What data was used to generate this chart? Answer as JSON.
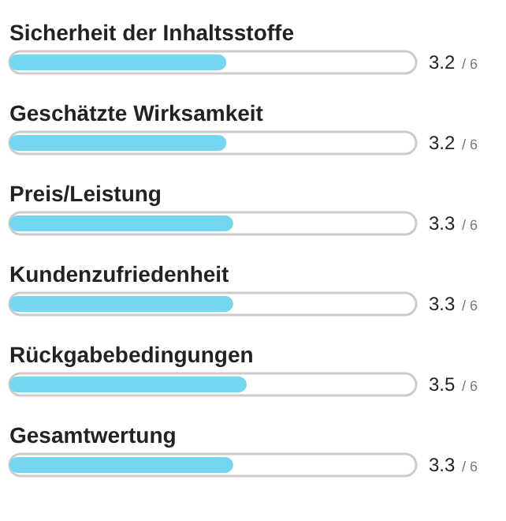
{
  "chart_data": {
    "type": "bar",
    "orientation": "horizontal",
    "categories": [
      "Sicherheit der Inhaltsstoffe",
      "Geschätzte Wirksamkeit",
      "Preis/Leistung",
      "Kundenzufriedenheit",
      "Rückgabebedingungen",
      "Gesamtwertung"
    ],
    "values": [
      3.2,
      3.2,
      3.3,
      3.3,
      3.5,
      3.3
    ],
    "data_labels": true,
    "annotations": [
      "/ 6",
      "/ 6",
      "/ 6",
      "/ 6",
      "/ 6",
      "/ 6"
    ],
    "color": "#74d7ef",
    "xlim": [
      0,
      6
    ]
  }
}
